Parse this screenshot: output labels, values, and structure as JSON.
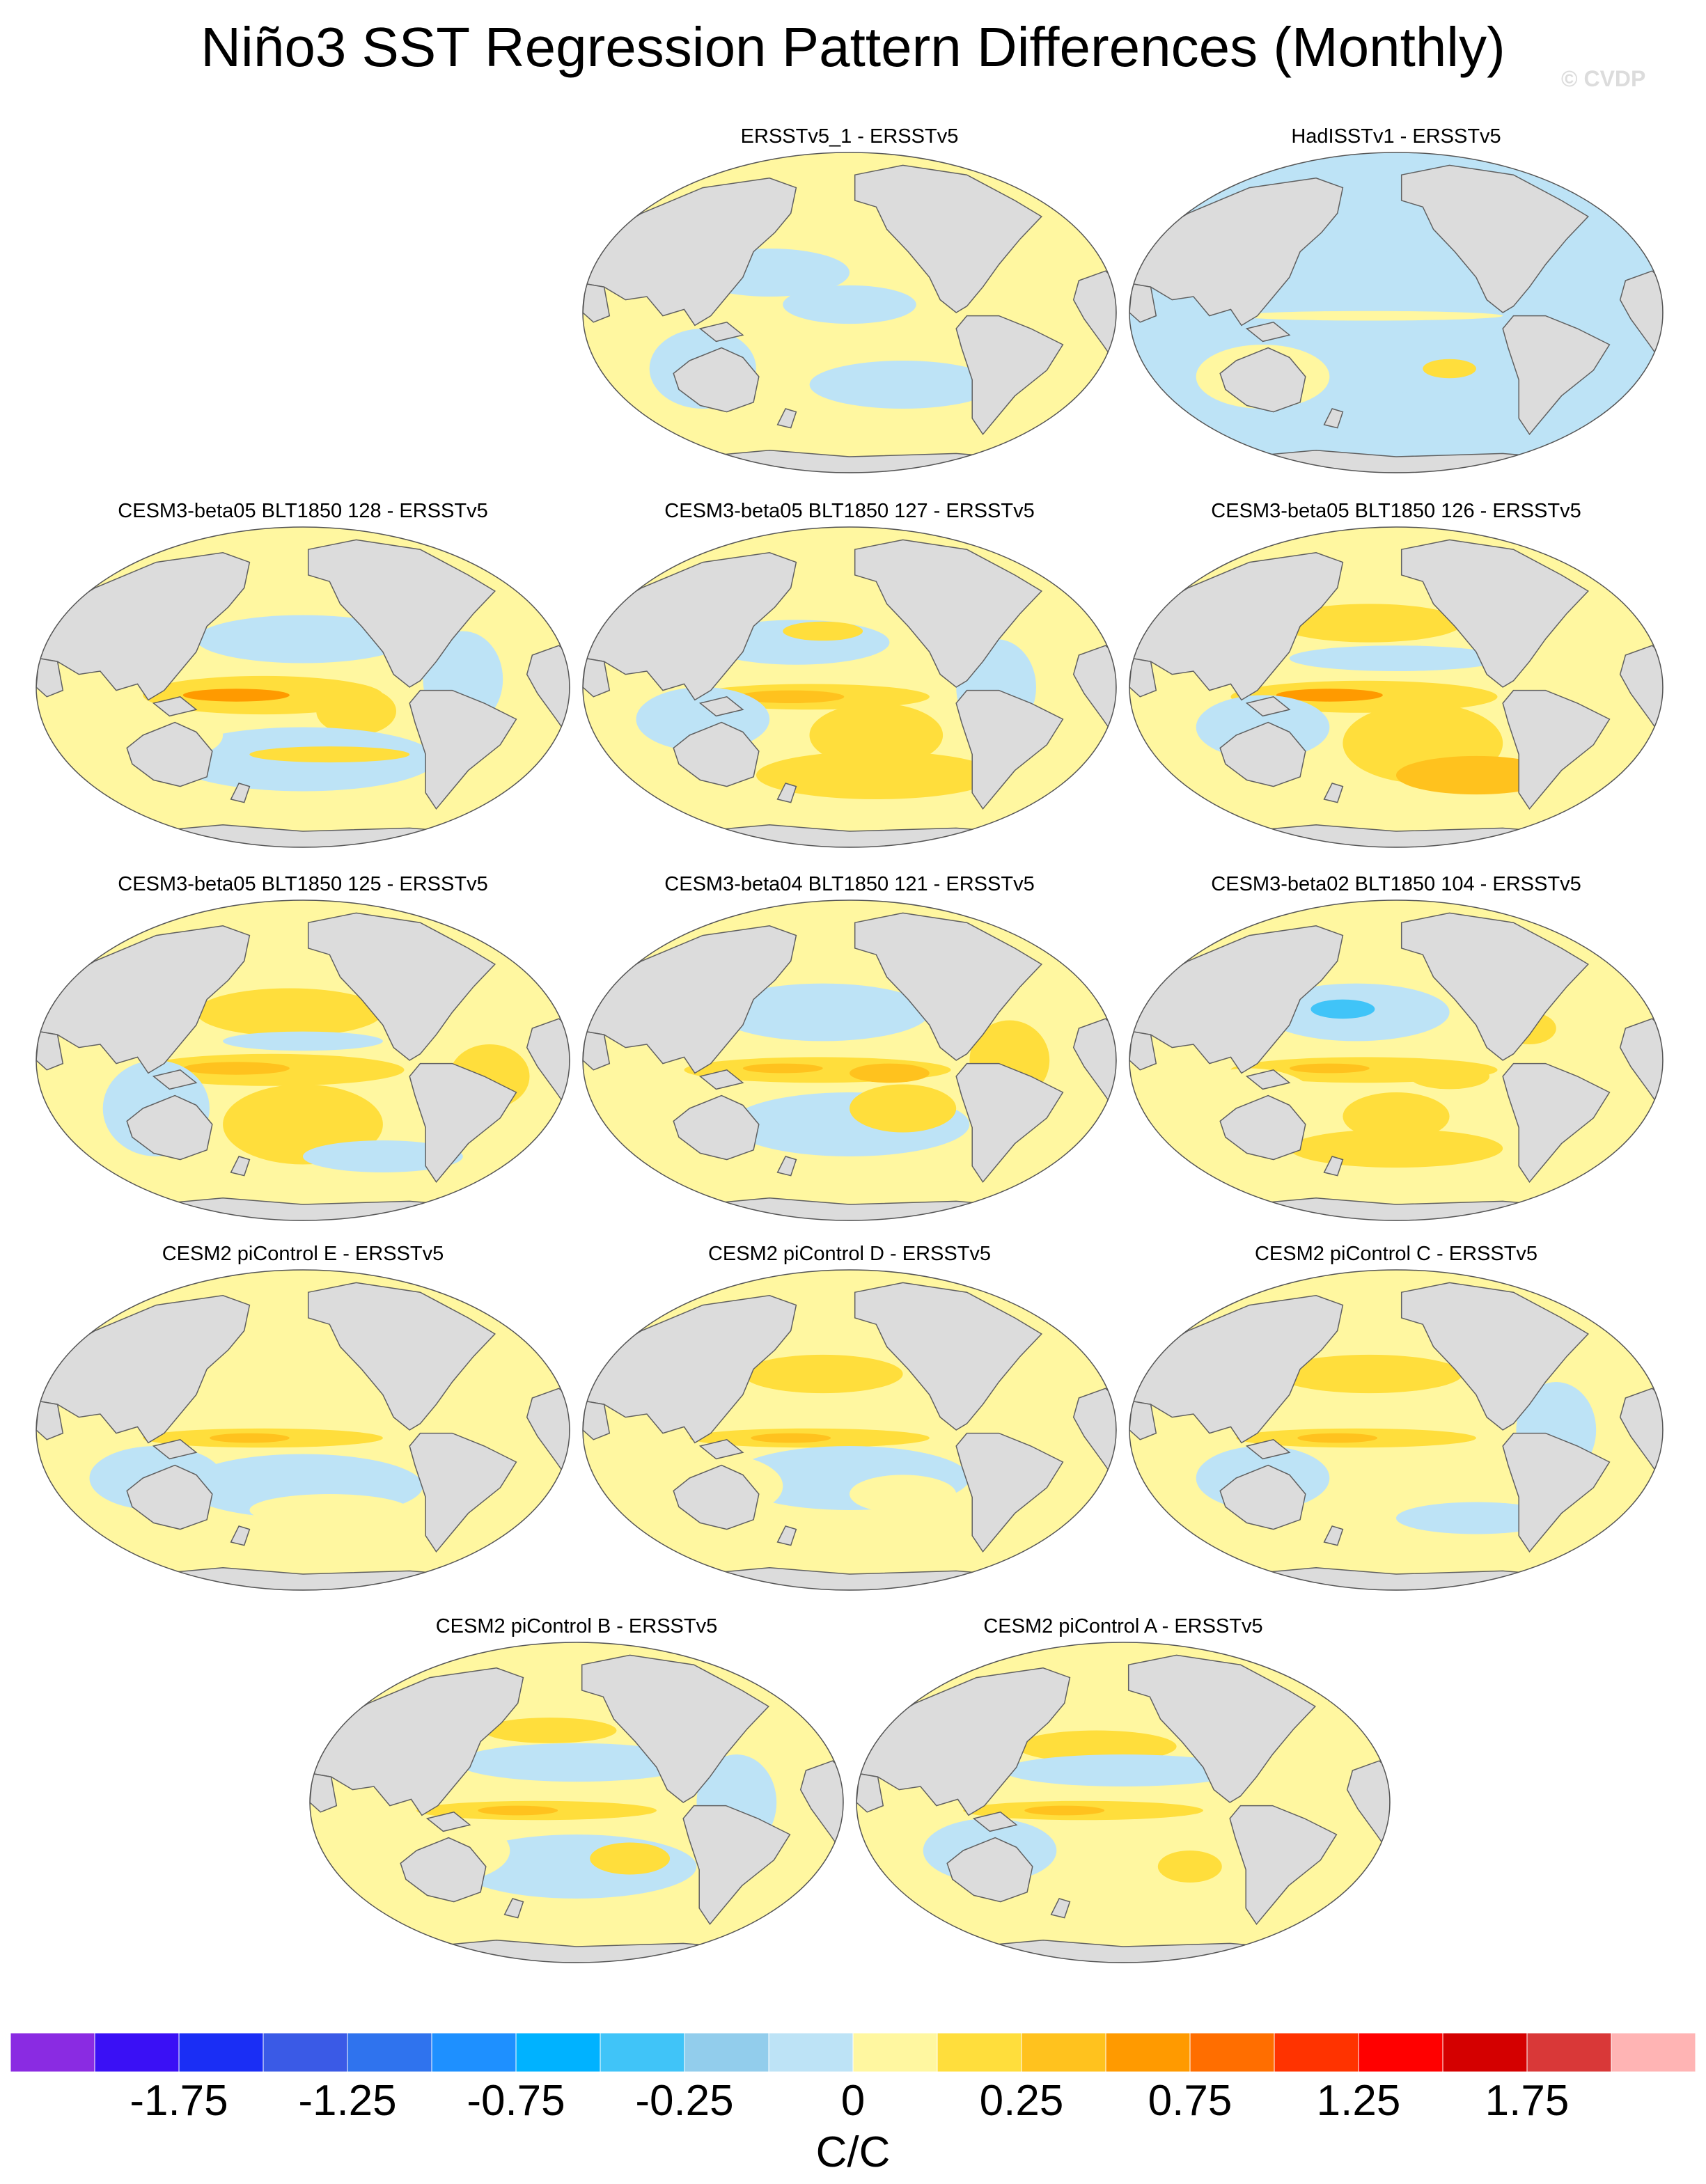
{
  "title": "Niño3 SST Regression Pattern Differences (Monthly)",
  "watermark": "© CVDP",
  "units": "C/C",
  "panels": [
    {
      "title": "ERSSTv5_1 - ERSSTv5",
      "variant": 0
    },
    {
      "title": "HadISSTv1 - ERSSTv5",
      "variant": 1
    },
    {
      "title": "CESM3-beta05 BLT1850 128 - ERSSTv5",
      "variant": 2
    },
    {
      "title": "CESM3-beta05 BLT1850 127 - ERSSTv5",
      "variant": 3
    },
    {
      "title": "CESM3-beta05 BLT1850 126 - ERSSTv5",
      "variant": 4
    },
    {
      "title": "CESM3-beta05 BLT1850 125 - ERSSTv5",
      "variant": 5
    },
    {
      "title": "CESM3-beta04 BLT1850 121 - ERSSTv5",
      "variant": 6
    },
    {
      "title": "CESM3-beta02 BLT1850 104 - ERSSTv5",
      "variant": 7
    },
    {
      "title": "CESM2 piControl E - ERSSTv5",
      "variant": 8
    },
    {
      "title": "CESM2 piControl D - ERSSTv5",
      "variant": 9
    },
    {
      "title": "CESM2 piControl C - ERSSTv5",
      "variant": 10
    },
    {
      "title": "CESM2 piControl B - ERSSTv5",
      "variant": 11
    },
    {
      "title": "CESM2 piControl A - ERSSTv5",
      "variant": 12
    }
  ],
  "colorbar": {
    "colors": [
      "#8a2be2",
      "#3a10f5",
      "#1a2ef5",
      "#3a5ae6",
      "#2f73ee",
      "#1e90ff",
      "#00b2ff",
      "#40c4f8",
      "#92cdec",
      "#bde3f6",
      "#fff7a0",
      "#ffde3c",
      "#ffc21e",
      "#ff9a00",
      "#ff6e00",
      "#ff3300",
      "#ff0000",
      "#d40000",
      "#d93838",
      "#ffb4b4"
    ],
    "labels": [
      "-1.75",
      "-1.25",
      "-0.75",
      "-0.25",
      "0",
      "0.25",
      "0.75",
      "1.25",
      "1.75"
    ]
  },
  "map_colors": {
    "land": "#dcdcdc",
    "coast": "#606060",
    "yellow": "#fff7a0",
    "lightblue": "#bde3f6",
    "gold": "#ffde3c",
    "orange": "#ffc21e",
    "darkorange": "#ff9a00",
    "blue": "#40c4f8",
    "deepblue": "#1e90ff"
  }
}
